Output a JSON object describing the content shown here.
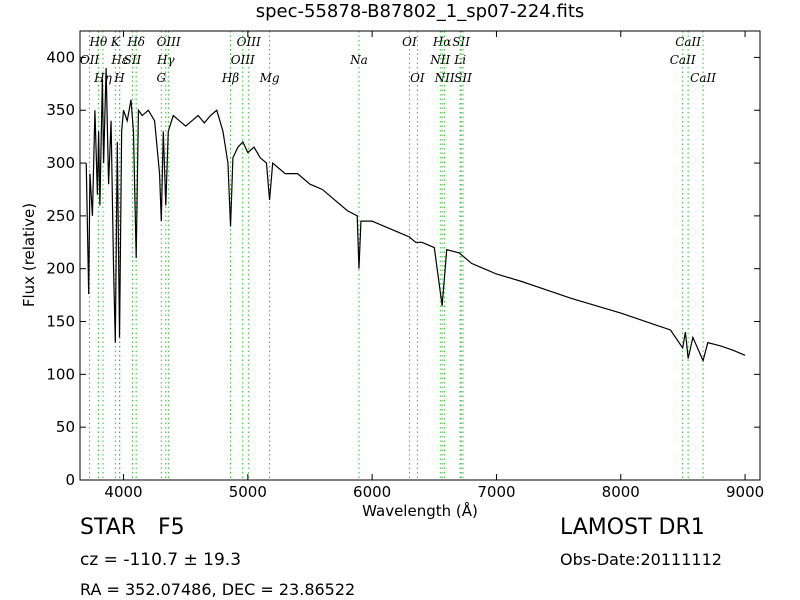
{
  "chart_data": {
    "type": "line",
    "title": "spec-55878-B87802_1_sp07-224.fits",
    "x_label": "Wavelength (Å)",
    "y_label": "Flux (relative)",
    "xlim": [
      3650,
      9120
    ],
    "ylim": [
      0,
      425
    ],
    "xticks": [
      4000,
      5000,
      6000,
      7000,
      8000,
      9000
    ],
    "yticks": [
      0,
      50,
      100,
      150,
      200,
      250,
      300,
      350,
      400
    ],
    "color": "#000000",
    "x": [
      3700,
      3720,
      3730,
      3750,
      3770,
      3790,
      3800,
      3810,
      3830,
      3840,
      3860,
      3880,
      3900,
      3920,
      3934,
      3950,
      3968,
      3985,
      4000,
      4030,
      4060,
      4080,
      4102,
      4120,
      4150,
      4200,
      4250,
      4290,
      4304,
      4320,
      4340,
      4360,
      4400,
      4450,
      4500,
      4550,
      4600,
      4650,
      4700,
      4750,
      4800,
      4840,
      4861,
      4880,
      4920,
      4960,
      5000,
      5050,
      5100,
      5150,
      5175,
      5200,
      5300,
      5400,
      5500,
      5600,
      5700,
      5800,
      5880,
      5894,
      5910,
      6000,
      6100,
      6200,
      6300,
      6350,
      6400,
      6500,
      6563,
      6600,
      6700,
      6800,
      6900,
      7000,
      7200,
      7400,
      7600,
      7800,
      8000,
      8200,
      8400,
      8498,
      8520,
      8542,
      8580,
      8662,
      8700,
      8800,
      8900,
      9000
    ],
    "values": [
      300,
      176,
      290,
      250,
      350,
      270,
      330,
      260,
      380,
      300,
      390,
      280,
      340,
      200,
      130,
      320,
      135,
      330,
      350,
      340,
      360,
      330,
      210,
      350,
      345,
      350,
      340,
      290,
      245,
      330,
      260,
      330,
      345,
      340,
      335,
      340,
      345,
      338,
      345,
      350,
      330,
      300,
      240,
      305,
      315,
      320,
      310,
      315,
      305,
      300,
      265,
      300,
      290,
      290,
      280,
      275,
      265,
      255,
      250,
      200,
      245,
      245,
      240,
      235,
      230,
      225,
      225,
      220,
      165,
      218,
      215,
      205,
      200,
      195,
      188,
      180,
      172,
      165,
      158,
      150,
      142,
      125,
      140,
      115,
      135,
      113,
      130,
      127,
      123,
      118
    ],
    "line_color": "#33bb33",
    "lines": [
      {
        "label": "Hθ",
        "wavelength": 3798
      },
      {
        "label": "OII",
        "wavelength": 3727
      },
      {
        "label": "Hη",
        "wavelength": 3835
      },
      {
        "label": "K",
        "wavelength": 3934
      },
      {
        "label": "Hε",
        "wavelength": 3970
      },
      {
        "label": "H",
        "wavelength": 3968
      },
      {
        "label": "Hδ",
        "wavelength": 4102
      },
      {
        "label": "SII",
        "wavelength": 4072
      },
      {
        "label": "G",
        "wavelength": 4304
      },
      {
        "label": "OIII",
        "wavelength": 4363
      },
      {
        "label": "Hγ",
        "wavelength": 4340
      },
      {
        "label": "Hβ",
        "wavelength": 4861
      },
      {
        "label": "OIII",
        "wavelength": 5007
      },
      {
        "label": "OIII",
        "wavelength": 4959
      },
      {
        "label": "Mg",
        "wavelength": 5175
      },
      {
        "label": "OI",
        "wavelength": 6300
      },
      {
        "label": "Na",
        "wavelength": 5894
      },
      {
        "label": "OI",
        "wavelength": 6364
      },
      {
        "label": "Hα",
        "wavelength": 6563
      },
      {
        "label": "NII",
        "wavelength": 6548
      },
      {
        "label": "NII",
        "wavelength": 6583
      },
      {
        "label": "SII",
        "wavelength": 6716
      },
      {
        "label": "Li",
        "wavelength": 6708
      },
      {
        "label": "SII",
        "wavelength": 6731
      },
      {
        "label": "CaII",
        "wavelength": 8542
      },
      {
        "label": "CaII",
        "wavelength": 8498
      },
      {
        "label": "CaII",
        "wavelength": 8662
      }
    ],
    "annotations": [
      "STAR",
      "F5",
      "LAMOST DR1",
      "cz = -110.7 ± 19.3",
      "Obs-Date:20111112",
      "RA = 352.07486, DEC = 23.86522"
    ]
  }
}
